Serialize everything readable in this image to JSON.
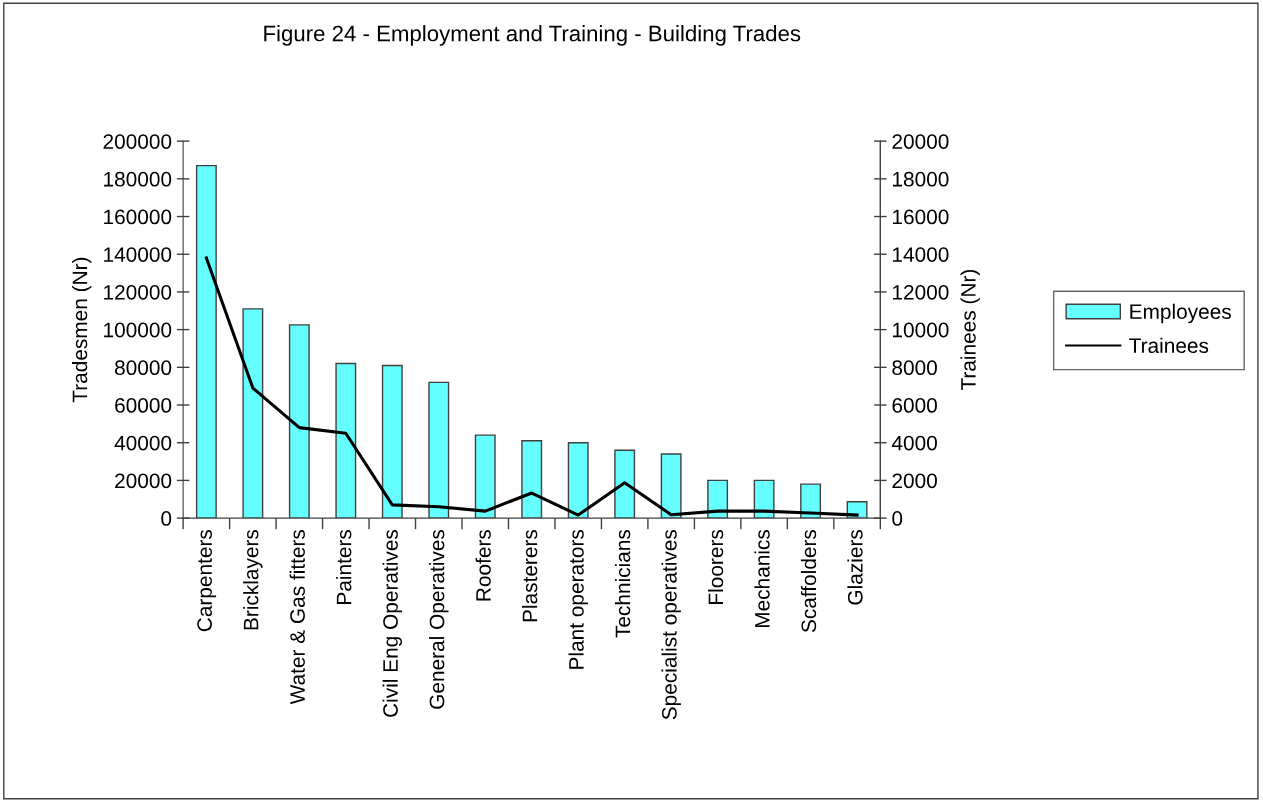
{
  "chart_data": {
    "type": "bar",
    "title": "Figure 24 - Employment and Training - Building Trades",
    "ylabel": "Tradesmen (Nr)",
    "y2label": "Trainees (Nr)",
    "categories": [
      "Carpenters",
      "Bricklayers",
      "Water & Gas fitters",
      "Painters",
      "Civil Eng Operatives",
      "General Operatives",
      "Roofers",
      "Plasterers",
      "Plant operators",
      "Technicians",
      "Specialist operatives",
      "Floorers",
      "Mechanics",
      "Scaffolders",
      "Glaziers"
    ],
    "series": [
      {
        "name": "Employees",
        "color": "#66ffff",
        "values": [
          187000,
          111000,
          102500,
          82000,
          81000,
          72000,
          44000,
          41000,
          40000,
          36000,
          34000,
          20000,
          20000,
          18000,
          8700
        ]
      },
      {
        "name": "Trainees",
        "type": "line",
        "axis": "y2",
        "color": "#000000",
        "line_style": "solid",
        "values": [
          13800,
          6900,
          4800,
          4500,
          700,
          600,
          370,
          1330,
          160,
          1870,
          180,
          370,
          370,
          270,
          160
        ]
      }
    ],
    "ylim": [
      0,
      200000
    ],
    "yticks": [
      0,
      20000,
      40000,
      60000,
      80000,
      100000,
      120000,
      140000,
      160000,
      180000,
      200000
    ],
    "y2lim": [
      0,
      20000
    ],
    "y2ticks": [
      0,
      2000,
      4000,
      6000,
      8000,
      10000,
      12000,
      14000,
      16000,
      18000,
      20000
    ],
    "legend": "right",
    "grid": false
  }
}
